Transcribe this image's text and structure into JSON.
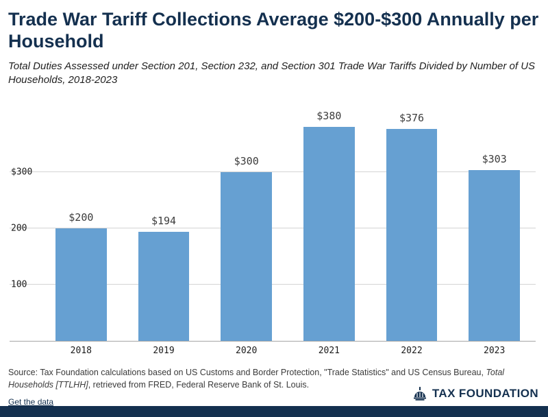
{
  "colors": {
    "navy": "#14304f",
    "bar_fill": "#66a0d2",
    "gridline": "#d4d4d4",
    "axis_line": "#a6a6a6"
  },
  "header": {
    "title": "Trade War Tariff Collections Average $200-$300 Annually per Household",
    "subtitle": "Total Duties Assessed under Section 201, Section 232, and Section 301 Trade War Tariffs Divided by Number of US Households, 2018-2023"
  },
  "chart_data": {
    "type": "bar",
    "title": "Trade War Tariff Collections Average $200-$300 Annually per Household",
    "categories": [
      "2018",
      "2019",
      "2020",
      "2021",
      "2022",
      "2023"
    ],
    "values": [
      200,
      194,
      300,
      380,
      376,
      303
    ],
    "value_labels": [
      "$200",
      "$194",
      "$300",
      "$380",
      "$376",
      "$303"
    ],
    "yticks": [
      {
        "value": 300,
        "label": "$300"
      },
      {
        "value": 200,
        "label": "200"
      },
      {
        "value": 100,
        "label": "100"
      }
    ],
    "xlabel": "",
    "ylabel": "",
    "ylim": [
      0,
      420
    ],
    "grid": "horizontal",
    "legend": "none"
  },
  "source": {
    "part1": "Source: Tax Foundation calculations based on US Customs and Border Protection, \"Trade Statistics\" and US Census Bureau, ",
    "italic": "Total Households [TTLHH]",
    "part2": ", retrieved from FRED, Federal Reserve Bank of St. Louis."
  },
  "footer": {
    "get_data_label": "Get the data",
    "logo_text": "TAX FOUNDATION"
  }
}
